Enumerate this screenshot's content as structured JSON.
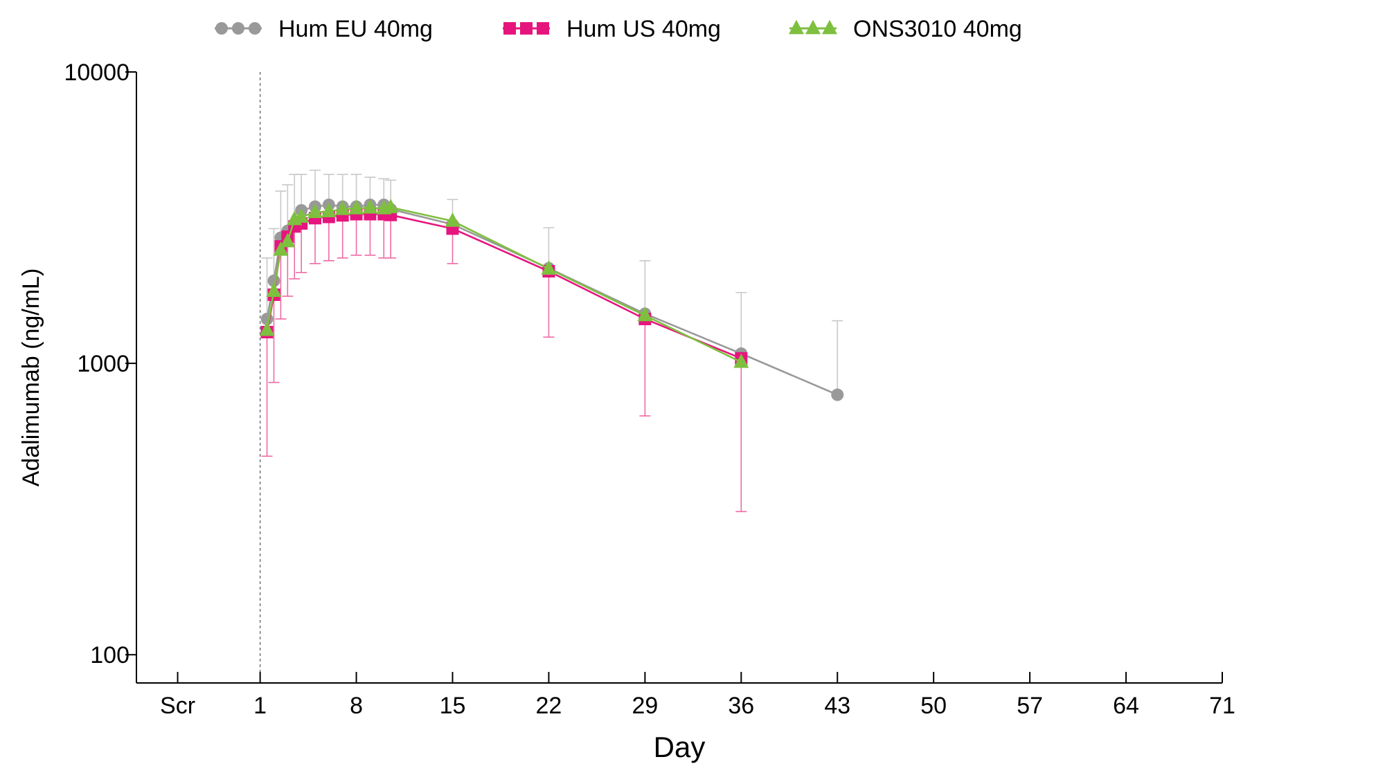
{
  "chart_data": {
    "type": "line",
    "title": "",
    "xlabel": "Day",
    "ylabel": "Adalimumab (ng/mL)",
    "yscale": "log",
    "ylim": [
      80,
      10000
    ],
    "xlim": [
      -8,
      71
    ],
    "x_ticks": [
      {
        "value": -5,
        "label": "Scr"
      },
      {
        "value": 1,
        "label": "1"
      },
      {
        "value": 8,
        "label": "8"
      },
      {
        "value": 15,
        "label": "15"
      },
      {
        "value": 22,
        "label": "22"
      },
      {
        "value": 29,
        "label": "29"
      },
      {
        "value": 36,
        "label": "36"
      },
      {
        "value": 43,
        "label": "43"
      },
      {
        "value": 50,
        "label": "50"
      },
      {
        "value": 57,
        "label": "57"
      },
      {
        "value": 64,
        "label": "64"
      },
      {
        "value": 71,
        "label": "71"
      }
    ],
    "y_ticks": [
      {
        "value": 100,
        "label": "100"
      },
      {
        "value": 1000,
        "label": "1000"
      },
      {
        "value": 10000,
        "label": "10000"
      }
    ],
    "reference_line_x": 1,
    "legend": {
      "placement": "top"
    },
    "series": [
      {
        "name": "Hum EU 40mg",
        "marker": "circle",
        "color": "#999999",
        "errorbar_color": "#c8c8c8",
        "x": [
          1.5,
          2,
          2.5,
          3,
          3.5,
          4,
          5,
          6,
          7,
          8,
          9,
          10,
          10.5,
          15,
          22,
          29,
          36,
          43
        ],
        "y": [
          1420,
          1920,
          2700,
          2850,
          3000,
          3350,
          3450,
          3500,
          3450,
          3450,
          3500,
          3500,
          3380,
          3000,
          2120,
          1480,
          1080,
          780
        ],
        "error_upper": [
          2300,
          2900,
          3900,
          4100,
          4450,
          4450,
          4600,
          4450,
          4450,
          4450,
          4350,
          4300,
          4250,
          3650,
          2920,
          2250,
          1750,
          1400
        ]
      },
      {
        "name": "Hum US 40mg",
        "marker": "square",
        "color": "#e6157e",
        "errorbar_color": "#ee6aa6",
        "x": [
          1.5,
          2,
          2.5,
          3,
          3.5,
          4,
          5,
          6,
          7,
          8,
          9,
          10,
          10.5,
          15,
          22,
          29,
          36
        ],
        "y": [
          1280,
          1720,
          2520,
          2720,
          2950,
          3020,
          3150,
          3180,
          3220,
          3250,
          3250,
          3250,
          3230,
          2900,
          2070,
          1420,
          1040
        ],
        "error_lower": [
          480,
          860,
          1420,
          1700,
          1950,
          2050,
          2200,
          2250,
          2300,
          2350,
          2350,
          2300,
          2300,
          2200,
          1230,
          660,
          310
        ]
      },
      {
        "name": "ONS3010 40mg",
        "marker": "triangle",
        "color": "#7fbf3f",
        "errorbar_color": "#a6d27a",
        "x": [
          1.5,
          2,
          2.5,
          3,
          3.5,
          4,
          5,
          6,
          7,
          8,
          9,
          10,
          10.5,
          15,
          22,
          29,
          36
        ],
        "y": [
          1300,
          1770,
          2450,
          2620,
          3120,
          3180,
          3300,
          3320,
          3380,
          3400,
          3420,
          3400,
          3430,
          3080,
          2110,
          1460,
          1010
        ]
      }
    ]
  }
}
